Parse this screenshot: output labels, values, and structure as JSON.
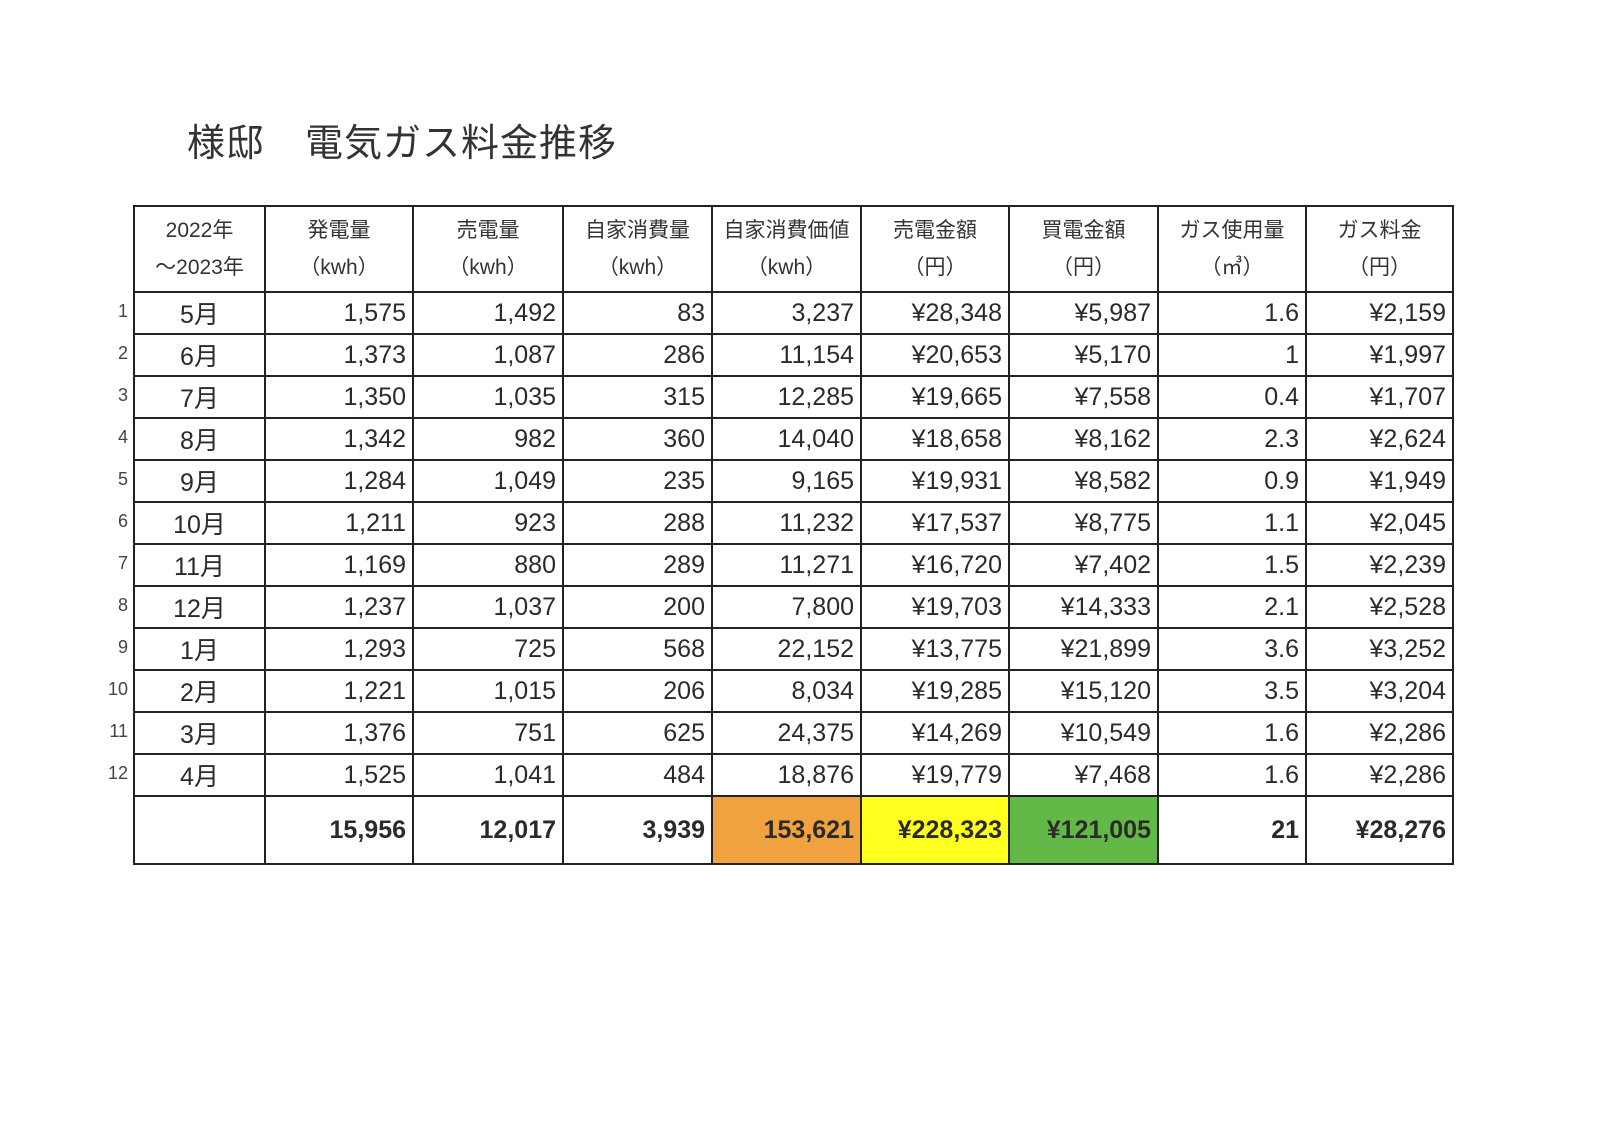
{
  "title": {
    "name": "様邸",
    "subtitle": "電気ガス料金推移"
  },
  "columns": [
    {
      "label": "2022年",
      "unit": "～2023年"
    },
    {
      "label": "発電量",
      "unit": "（kwh）"
    },
    {
      "label": "売電量",
      "unit": "（kwh）"
    },
    {
      "label": "自家消費量",
      "unit": "（kwh）"
    },
    {
      "label": "自家消費価値",
      "unit": "（kwh）"
    },
    {
      "label": "売電金額",
      "unit": "（円）"
    },
    {
      "label": "買電金額",
      "unit": "（円）"
    },
    {
      "label": "ガス使用量",
      "unit": "（㎥）"
    },
    {
      "label": "ガス料金",
      "unit": "（円）"
    }
  ],
  "rows": [
    {
      "num": "1",
      "cells": [
        "5月",
        "1,575",
        "1,492",
        "83",
        "3,237",
        "¥28,348",
        "¥5,987",
        "1.6",
        "¥2,159"
      ]
    },
    {
      "num": "2",
      "cells": [
        "6月",
        "1,373",
        "1,087",
        "286",
        "11,154",
        "¥20,653",
        "¥5,170",
        "1",
        "¥1,997"
      ]
    },
    {
      "num": "3",
      "cells": [
        "7月",
        "1,350",
        "1,035",
        "315",
        "12,285",
        "¥19,665",
        "¥7,558",
        "0.4",
        "¥1,707"
      ]
    },
    {
      "num": "4",
      "cells": [
        "8月",
        "1,342",
        "982",
        "360",
        "14,040",
        "¥18,658",
        "¥8,162",
        "2.3",
        "¥2,624"
      ]
    },
    {
      "num": "5",
      "cells": [
        "9月",
        "1,284",
        "1,049",
        "235",
        "9,165",
        "¥19,931",
        "¥8,582",
        "0.9",
        "¥1,949"
      ]
    },
    {
      "num": "6",
      "cells": [
        "10月",
        "1,211",
        "923",
        "288",
        "11,232",
        "¥17,537",
        "¥8,775",
        "1.1",
        "¥2,045"
      ]
    },
    {
      "num": "7",
      "cells": [
        "11月",
        "1,169",
        "880",
        "289",
        "11,271",
        "¥16,720",
        "¥7,402",
        "1.5",
        "¥2,239"
      ]
    },
    {
      "num": "8",
      "cells": [
        "12月",
        "1,237",
        "1,037",
        "200",
        "7,800",
        "¥19,703",
        "¥14,333",
        "2.1",
        "¥2,528"
      ]
    },
    {
      "num": "9",
      "cells": [
        "1月",
        "1,293",
        "725",
        "568",
        "22,152",
        "¥13,775",
        "¥21,899",
        "3.6",
        "¥3,252"
      ]
    },
    {
      "num": "10",
      "cells": [
        "2月",
        "1,221",
        "1,015",
        "206",
        "8,034",
        "¥19,285",
        "¥15,120",
        "3.5",
        "¥3,204"
      ]
    },
    {
      "num": "11",
      "cells": [
        "3月",
        "1,376",
        "751",
        "625",
        "24,375",
        "¥14,269",
        "¥10,549",
        "1.6",
        "¥2,286"
      ]
    },
    {
      "num": "12",
      "cells": [
        "4月",
        "1,525",
        "1,041",
        "484",
        "18,876",
        "¥19,779",
        "¥7,468",
        "1.6",
        "¥2,286"
      ]
    }
  ],
  "totals": [
    "",
    "15,956",
    "12,017",
    "3,939",
    "153,621",
    "¥228,323",
    "¥121,005",
    "21",
    "¥28,276"
  ],
  "total_highlights": {
    "4": "#f0a23e",
    "5": "#ffff1e",
    "6": "#63b947"
  }
}
